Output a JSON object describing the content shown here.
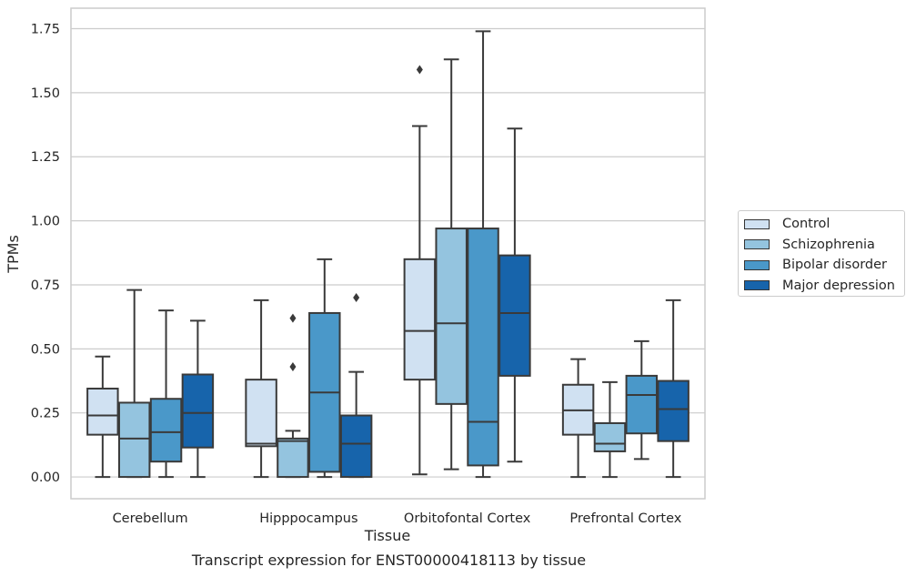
{
  "caption": "Transcript expression for ENST00000418113 by tissue",
  "chart_data": {
    "type": "box",
    "xlabel": "Tissue",
    "ylabel": "TPMs",
    "ylim": [
      -0.085,
      1.83
    ],
    "yticks": [
      0.0,
      0.25,
      0.5,
      0.75,
      1.0,
      1.25,
      1.5,
      1.75
    ],
    "ytick_labels": [
      "0.00",
      "0.25",
      "0.50",
      "0.75",
      "1.00",
      "1.25",
      "1.50",
      "1.75"
    ],
    "grid": "horizontal",
    "legend_position": "right",
    "categories": [
      "Cerebellum",
      "Hipppocampus",
      "Orbitofontal Cortex",
      "Prefrontal Cortex"
    ],
    "series": [
      {
        "name": "Control",
        "color": "#d0e1f2",
        "boxes": [
          {
            "whislo": 0.0,
            "q1": 0.165,
            "med": 0.24,
            "q3": 0.345,
            "whishi": 0.47,
            "fliers": []
          },
          {
            "whislo": 0.0,
            "q1": 0.12,
            "med": 0.13,
            "q3": 0.38,
            "whishi": 0.69,
            "fliers": []
          },
          {
            "whislo": 0.01,
            "q1": 0.38,
            "med": 0.57,
            "q3": 0.85,
            "whishi": 1.37,
            "fliers": [
              1.59
            ]
          },
          {
            "whislo": 0.0,
            "q1": 0.165,
            "med": 0.26,
            "q3": 0.36,
            "whishi": 0.46,
            "fliers": []
          }
        ]
      },
      {
        "name": "Schizophrenia",
        "color": "#94c4df",
        "boxes": [
          {
            "whislo": 0.0,
            "q1": 0.0,
            "med": 0.15,
            "q3": 0.29,
            "whishi": 0.73,
            "fliers": []
          },
          {
            "whislo": 0.0,
            "q1": 0.0,
            "med": 0.14,
            "q3": 0.15,
            "whishi": 0.18,
            "fliers": [
              0.43,
              0.62
            ]
          },
          {
            "whislo": 0.03,
            "q1": 0.285,
            "med": 0.6,
            "q3": 0.97,
            "whishi": 1.63,
            "fliers": []
          },
          {
            "whislo": 0.0,
            "q1": 0.1,
            "med": 0.13,
            "q3": 0.21,
            "whishi": 0.37,
            "fliers": []
          }
        ]
      },
      {
        "name": "Bipolar disorder",
        "color": "#4a98c9",
        "boxes": [
          {
            "whislo": 0.0,
            "q1": 0.06,
            "med": 0.175,
            "q3": 0.305,
            "whishi": 0.65,
            "fliers": []
          },
          {
            "whislo": 0.0,
            "q1": 0.02,
            "med": 0.33,
            "q3": 0.64,
            "whishi": 0.85,
            "fliers": []
          },
          {
            "whislo": 0.0,
            "q1": 0.045,
            "med": 0.215,
            "q3": 0.97,
            "whishi": 1.74,
            "fliers": []
          },
          {
            "whislo": 0.07,
            "q1": 0.17,
            "med": 0.32,
            "q3": 0.395,
            "whishi": 0.53,
            "fliers": []
          }
        ]
      },
      {
        "name": "Major depression",
        "color": "#1764ab",
        "boxes": [
          {
            "whislo": 0.0,
            "q1": 0.115,
            "med": 0.25,
            "q3": 0.4,
            "whishi": 0.61,
            "fliers": []
          },
          {
            "whislo": 0.0,
            "q1": 0.0,
            "med": 0.13,
            "q3": 0.24,
            "whishi": 0.41,
            "fliers": [
              0.7
            ]
          },
          {
            "whislo": 0.06,
            "q1": 0.395,
            "med": 0.64,
            "q3": 0.865,
            "whishi": 1.36,
            "fliers": []
          },
          {
            "whislo": 0.0,
            "q1": 0.14,
            "med": 0.265,
            "q3": 0.375,
            "whishi": 0.69,
            "fliers": []
          }
        ]
      }
    ]
  }
}
